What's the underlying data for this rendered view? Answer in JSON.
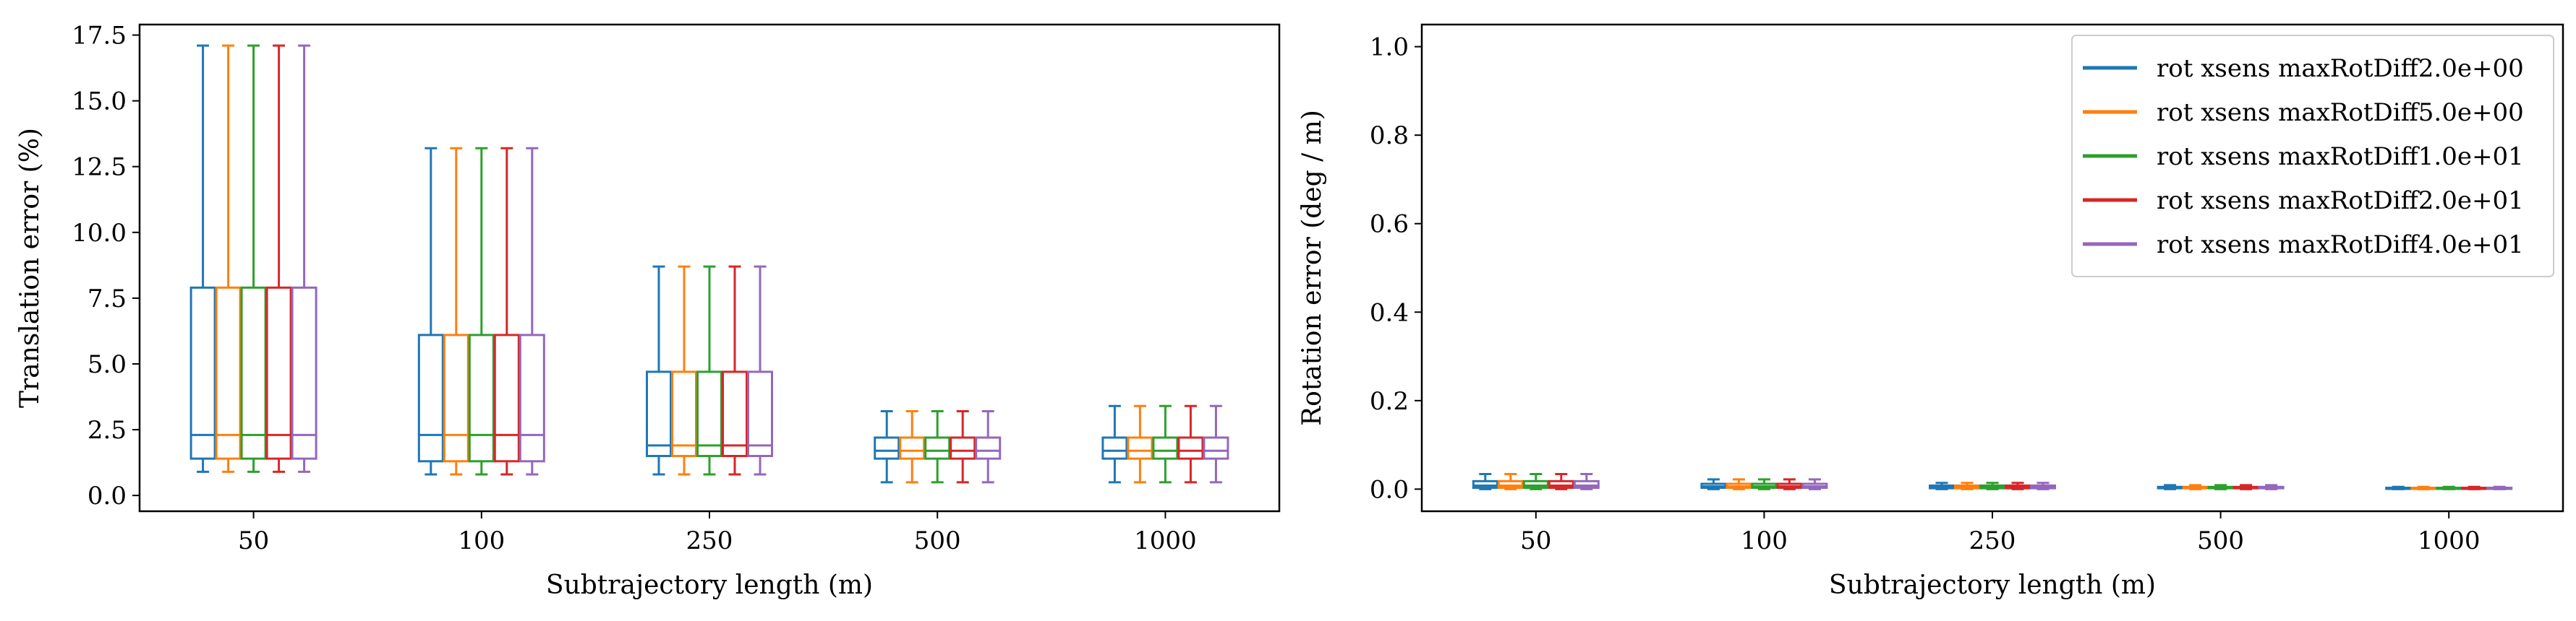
{
  "chart_data": [
    {
      "type": "box",
      "xlabel": "Subtrajectory length (m)",
      "ylabel": "Translation error (%)",
      "categories": [
        "50",
        "100",
        "250",
        "500",
        "1000"
      ],
      "ylim": [
        -0.6,
        17.9
      ],
      "yticks": [
        0.0,
        2.5,
        5.0,
        7.5,
        10.0,
        12.5,
        15.0,
        17.5
      ],
      "ytick_labels": [
        "0.0",
        "2.5",
        "5.0",
        "7.5",
        "10.0",
        "12.5",
        "15.0",
        "17.5"
      ],
      "grid": false,
      "series": [
        {
          "name": "rot xsens maxRotDiff2.0e+00",
          "color": "#1f77b4",
          "boxes": [
            {
              "whislo": 0.9,
              "q1": 1.4,
              "med": 2.3,
              "q3": 7.9,
              "whishi": 17.1
            },
            {
              "whislo": 0.8,
              "q1": 1.3,
              "med": 2.3,
              "q3": 6.1,
              "whishi": 13.2
            },
            {
              "whislo": 0.8,
              "q1": 1.5,
              "med": 1.9,
              "q3": 4.7,
              "whishi": 8.7
            },
            {
              "whislo": 0.5,
              "q1": 1.4,
              "med": 1.7,
              "q3": 2.2,
              "whishi": 3.2
            },
            {
              "whislo": 0.5,
              "q1": 1.4,
              "med": 1.7,
              "q3": 2.2,
              "whishi": 3.4
            }
          ]
        },
        {
          "name": "rot xsens maxRotDiff5.0e+00",
          "color": "#ff7f0e",
          "boxes": [
            {
              "whislo": 0.9,
              "q1": 1.4,
              "med": 2.3,
              "q3": 7.9,
              "whishi": 17.1
            },
            {
              "whislo": 0.8,
              "q1": 1.3,
              "med": 2.3,
              "q3": 6.1,
              "whishi": 13.2
            },
            {
              "whislo": 0.8,
              "q1": 1.5,
              "med": 1.9,
              "q3": 4.7,
              "whishi": 8.7
            },
            {
              "whislo": 0.5,
              "q1": 1.4,
              "med": 1.7,
              "q3": 2.2,
              "whishi": 3.2
            },
            {
              "whislo": 0.5,
              "q1": 1.4,
              "med": 1.7,
              "q3": 2.2,
              "whishi": 3.4
            }
          ]
        },
        {
          "name": "rot xsens maxRotDiff1.0e+01",
          "color": "#2ca02c",
          "boxes": [
            {
              "whislo": 0.9,
              "q1": 1.4,
              "med": 2.3,
              "q3": 7.9,
              "whishi": 17.1
            },
            {
              "whislo": 0.8,
              "q1": 1.3,
              "med": 2.3,
              "q3": 6.1,
              "whishi": 13.2
            },
            {
              "whislo": 0.8,
              "q1": 1.5,
              "med": 1.9,
              "q3": 4.7,
              "whishi": 8.7
            },
            {
              "whislo": 0.5,
              "q1": 1.4,
              "med": 1.7,
              "q3": 2.2,
              "whishi": 3.2
            },
            {
              "whislo": 0.5,
              "q1": 1.4,
              "med": 1.7,
              "q3": 2.2,
              "whishi": 3.4
            }
          ]
        },
        {
          "name": "rot xsens maxRotDiff2.0e+01",
          "color": "#d62728",
          "boxes": [
            {
              "whislo": 0.9,
              "q1": 1.4,
              "med": 2.3,
              "q3": 7.9,
              "whishi": 17.1
            },
            {
              "whislo": 0.8,
              "q1": 1.3,
              "med": 2.3,
              "q3": 6.1,
              "whishi": 13.2
            },
            {
              "whislo": 0.8,
              "q1": 1.5,
              "med": 1.9,
              "q3": 4.7,
              "whishi": 8.7
            },
            {
              "whislo": 0.5,
              "q1": 1.4,
              "med": 1.7,
              "q3": 2.2,
              "whishi": 3.2
            },
            {
              "whislo": 0.5,
              "q1": 1.4,
              "med": 1.7,
              "q3": 2.2,
              "whishi": 3.4
            }
          ]
        },
        {
          "name": "rot xsens maxRotDiff4.0e+01",
          "color": "#9467bd",
          "boxes": [
            {
              "whislo": 0.9,
              "q1": 1.4,
              "med": 2.3,
              "q3": 7.9,
              "whishi": 17.1
            },
            {
              "whislo": 0.8,
              "q1": 1.3,
              "med": 2.3,
              "q3": 6.1,
              "whishi": 13.2
            },
            {
              "whislo": 0.8,
              "q1": 1.5,
              "med": 1.9,
              "q3": 4.7,
              "whishi": 8.7
            },
            {
              "whislo": 0.5,
              "q1": 1.4,
              "med": 1.7,
              "q3": 2.2,
              "whishi": 3.2
            },
            {
              "whislo": 0.5,
              "q1": 1.4,
              "med": 1.7,
              "q3": 2.2,
              "whishi": 3.4
            }
          ]
        }
      ]
    },
    {
      "type": "box",
      "xlabel": "Subtrajectory length (m)",
      "ylabel": "Rotation error (deg / m)",
      "categories": [
        "50",
        "100",
        "250",
        "500",
        "1000"
      ],
      "ylim": [
        -0.05,
        1.05
      ],
      "yticks": [
        0.0,
        0.2,
        0.4,
        0.6,
        0.8,
        1.0
      ],
      "ytick_labels": [
        "0.0",
        "0.2",
        "0.4",
        "0.6",
        "0.8",
        "1.0"
      ],
      "grid": false,
      "legend_position": "top-right",
      "series": [
        {
          "name": "rot xsens maxRotDiff2.0e+00",
          "color": "#1f77b4",
          "boxes": [
            {
              "whislo": 0.0,
              "q1": 0.003,
              "med": 0.008,
              "q3": 0.018,
              "whishi": 0.034
            },
            {
              "whislo": 0.0,
              "q1": 0.003,
              "med": 0.006,
              "q3": 0.012,
              "whishi": 0.022
            },
            {
              "whislo": 0.0,
              "q1": 0.002,
              "med": 0.004,
              "q3": 0.008,
              "whishi": 0.014
            },
            {
              "whislo": 0.0,
              "q1": 0.002,
              "med": 0.003,
              "q3": 0.005,
              "whishi": 0.009
            },
            {
              "whislo": 0.0,
              "q1": 0.001,
              "med": 0.002,
              "q3": 0.003,
              "whishi": 0.005
            }
          ]
        },
        {
          "name": "rot xsens maxRotDiff5.0e+00",
          "color": "#ff7f0e",
          "boxes": [
            {
              "whislo": 0.0,
              "q1": 0.003,
              "med": 0.008,
              "q3": 0.018,
              "whishi": 0.034
            },
            {
              "whislo": 0.0,
              "q1": 0.003,
              "med": 0.006,
              "q3": 0.012,
              "whishi": 0.022
            },
            {
              "whislo": 0.0,
              "q1": 0.002,
              "med": 0.004,
              "q3": 0.008,
              "whishi": 0.014
            },
            {
              "whislo": 0.0,
              "q1": 0.002,
              "med": 0.003,
              "q3": 0.005,
              "whishi": 0.009
            },
            {
              "whislo": 0.0,
              "q1": 0.001,
              "med": 0.002,
              "q3": 0.003,
              "whishi": 0.005
            }
          ]
        },
        {
          "name": "rot xsens maxRotDiff1.0e+01",
          "color": "#2ca02c",
          "boxes": [
            {
              "whislo": 0.0,
              "q1": 0.003,
              "med": 0.008,
              "q3": 0.018,
              "whishi": 0.034
            },
            {
              "whislo": 0.0,
              "q1": 0.003,
              "med": 0.006,
              "q3": 0.012,
              "whishi": 0.022
            },
            {
              "whislo": 0.0,
              "q1": 0.002,
              "med": 0.004,
              "q3": 0.008,
              "whishi": 0.014
            },
            {
              "whislo": 0.0,
              "q1": 0.002,
              "med": 0.003,
              "q3": 0.005,
              "whishi": 0.009
            },
            {
              "whislo": 0.0,
              "q1": 0.001,
              "med": 0.002,
              "q3": 0.003,
              "whishi": 0.005
            }
          ]
        },
        {
          "name": "rot xsens maxRotDiff2.0e+01",
          "color": "#d62728",
          "boxes": [
            {
              "whislo": 0.0,
              "q1": 0.003,
              "med": 0.008,
              "q3": 0.018,
              "whishi": 0.034
            },
            {
              "whislo": 0.0,
              "q1": 0.003,
              "med": 0.006,
              "q3": 0.012,
              "whishi": 0.022
            },
            {
              "whislo": 0.0,
              "q1": 0.002,
              "med": 0.004,
              "q3": 0.008,
              "whishi": 0.014
            },
            {
              "whislo": 0.0,
              "q1": 0.002,
              "med": 0.003,
              "q3": 0.005,
              "whishi": 0.009
            },
            {
              "whislo": 0.0,
              "q1": 0.001,
              "med": 0.002,
              "q3": 0.003,
              "whishi": 0.005
            }
          ]
        },
        {
          "name": "rot xsens maxRotDiff4.0e+01",
          "color": "#9467bd",
          "boxes": [
            {
              "whislo": 0.0,
              "q1": 0.003,
              "med": 0.008,
              "q3": 0.018,
              "whishi": 0.034
            },
            {
              "whislo": 0.0,
              "q1": 0.003,
              "med": 0.006,
              "q3": 0.012,
              "whishi": 0.022
            },
            {
              "whislo": 0.0,
              "q1": 0.002,
              "med": 0.004,
              "q3": 0.008,
              "whishi": 0.014
            },
            {
              "whislo": 0.0,
              "q1": 0.002,
              "med": 0.003,
              "q3": 0.005,
              "whishi": 0.009
            },
            {
              "whislo": 0.0,
              "q1": 0.001,
              "med": 0.002,
              "q3": 0.003,
              "whishi": 0.005
            }
          ]
        }
      ]
    }
  ]
}
